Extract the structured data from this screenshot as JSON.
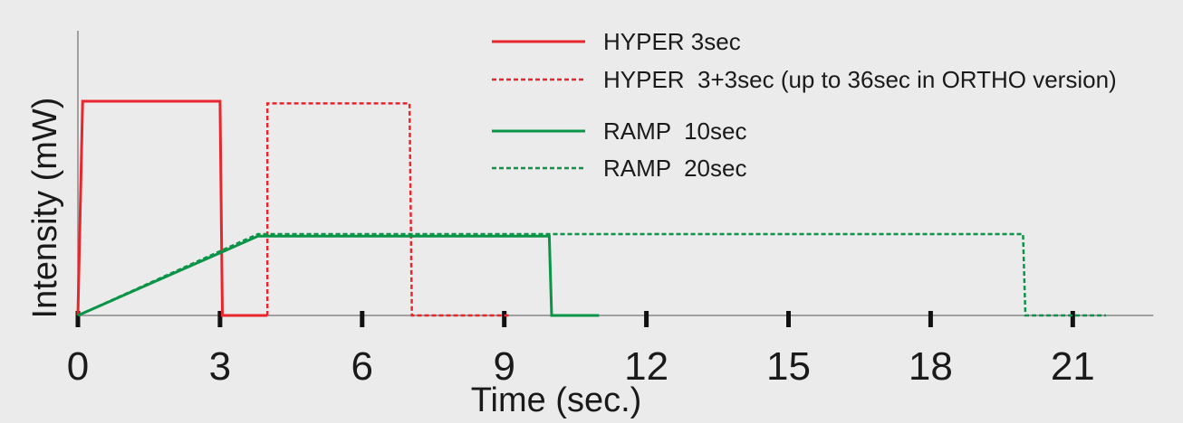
{
  "chart_data": {
    "type": "line",
    "xlabel": "Time (sec.)",
    "ylabel": "Intensity (mW)",
    "xlim": [
      0,
      22.7
    ],
    "ylim": [
      0,
      1
    ],
    "x_ticks": [
      0,
      3,
      6,
      9,
      12,
      15,
      18,
      21
    ],
    "x_tick_labels": [
      "0",
      "3",
      "6",
      "9",
      "12",
      "15",
      "18",
      "21"
    ],
    "grid": false,
    "legend_position": "top-right",
    "series": [
      {
        "name": "HYPER 3sec",
        "color": "#e8262d",
        "dash": "solid",
        "points": [
          [
            0,
            0
          ],
          [
            0.1,
            1.0
          ],
          [
            3.0,
            1.0
          ],
          [
            3.05,
            0
          ],
          [
            4.0,
            0
          ]
        ]
      },
      {
        "name": "HYPER  3+3sec (up to 36sec in ORTHO version)",
        "color": "#e8262d",
        "dash": "dashed",
        "points": [
          [
            4.0,
            0
          ],
          [
            4.0,
            0.99
          ],
          [
            7.0,
            0.99
          ],
          [
            7.05,
            0
          ],
          [
            9.1,
            0
          ]
        ]
      },
      {
        "name": "RAMP  10sec",
        "color": "#0a9447",
        "dash": "solid",
        "points": [
          [
            0,
            0
          ],
          [
            3.8,
            0.37
          ],
          [
            9.95,
            0.37
          ],
          [
            10.0,
            0
          ],
          [
            11.0,
            0
          ]
        ]
      },
      {
        "name": "RAMP  20sec",
        "color": "#0a9447",
        "dash": "dashed",
        "points": [
          [
            0,
            0
          ],
          [
            3.8,
            0.38
          ],
          [
            19.95,
            0.38
          ],
          [
            20.0,
            0
          ],
          [
            21.7,
            0
          ]
        ]
      }
    ]
  }
}
